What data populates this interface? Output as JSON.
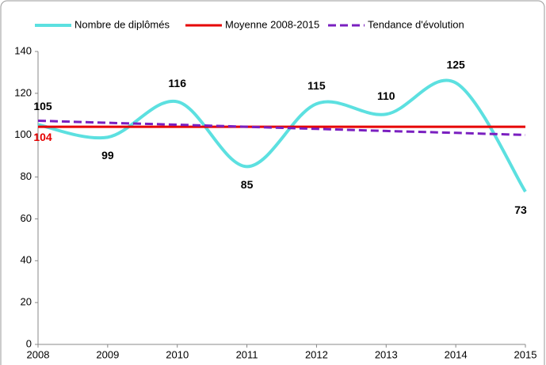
{
  "chart_data": {
    "type": "line",
    "x": [
      2008,
      2009,
      2010,
      2011,
      2012,
      2013,
      2014,
      2015
    ],
    "xlim": [
      2008,
      2015
    ],
    "xticks": [
      2008,
      2009,
      2010,
      2011,
      2012,
      2013,
      2014,
      2015
    ],
    "ylim": [
      0,
      140
    ],
    "yticks": [
      0,
      20,
      40,
      60,
      80,
      100,
      120,
      140
    ],
    "legend": "top",
    "series": [
      {
        "name": "Nombre de diplômés",
        "color": "#5ce0e0",
        "style": "smooth",
        "values": [
          105,
          99,
          116,
          85,
          115,
          110,
          125,
          73
        ]
      },
      {
        "name": "Moyenne 2008-2015",
        "color": "#e60000",
        "style": "solid",
        "values": [
          104,
          104,
          104,
          104,
          104,
          104,
          104,
          104
        ]
      },
      {
        "name": "Tendance d'évolution",
        "color": "#7a1fc0",
        "style": "dashed",
        "values": [
          106.9,
          105.9,
          105.0,
          104.0,
          103.0,
          102.0,
          101.1,
          100.1
        ]
      }
    ]
  }
}
